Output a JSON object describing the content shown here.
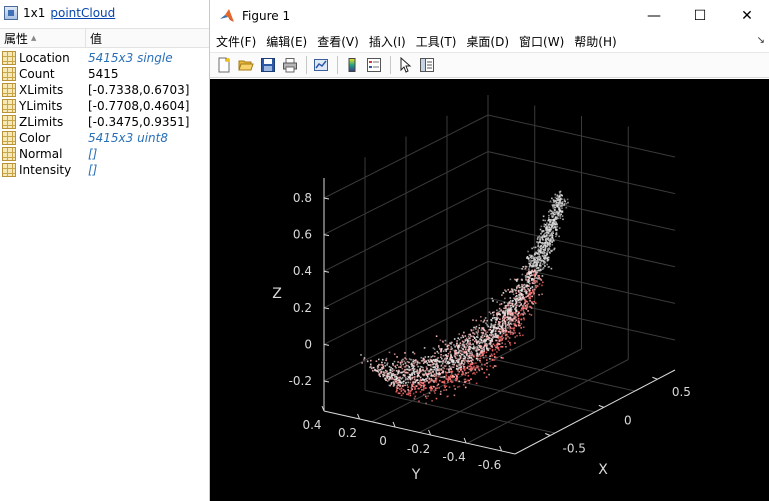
{
  "inspector": {
    "size": "1x1",
    "class_name": "pointCloud",
    "header": {
      "property": "属性",
      "value": "值"
    },
    "rows": [
      {
        "name": "Location",
        "value": "5415x3 single",
        "link": true
      },
      {
        "name": "Count",
        "value": "5415",
        "link": false
      },
      {
        "name": "XLimits",
        "value": "[-0.7338,0.6703]",
        "link": false
      },
      {
        "name": "YLimits",
        "value": "[-0.7708,0.4604]",
        "link": false
      },
      {
        "name": "ZLimits",
        "value": "[-0.3475,0.9351]",
        "link": false
      },
      {
        "name": "Color",
        "value": "5415x3 uint8",
        "link": true
      },
      {
        "name": "Normal",
        "value": "[]",
        "link": true
      },
      {
        "name": "Intensity",
        "value": "[]",
        "link": true
      }
    ]
  },
  "figure": {
    "title": "Figure 1",
    "window_buttons": {
      "minimize": "—",
      "maximize": "☐",
      "close": "✕"
    },
    "menu": [
      "文件(F)",
      "编辑(E)",
      "查看(V)",
      "插入(I)",
      "工具(T)",
      "桌面(D)",
      "窗口(W)",
      "帮助(H)"
    ],
    "menu_overflow": "↘",
    "toolbar": [
      "new-figure-icon",
      "open-file-icon",
      "save-icon",
      "print-icon",
      "link-plot-icon",
      "colorbar-icon",
      "legend-icon",
      "pointer-icon",
      "property-inspector-icon"
    ]
  },
  "chart_data": {
    "type": "scatter",
    "projection": "3d",
    "point_count": 5415,
    "zlabel": "Z",
    "ylabel": "Y",
    "xlabel": "X",
    "z_ticks": [
      "-0.2",
      "0",
      "0.2",
      "0.4",
      "0.6",
      "0.8"
    ],
    "y_ticks": [
      "0.4",
      "0.2",
      "0",
      "-0.2",
      "-0.4",
      "-0.6"
    ],
    "x_ticks": [
      "-0.5",
      "0",
      "0.5"
    ],
    "xlim": [
      -0.7338,
      0.6703
    ],
    "ylim": [
      -0.7708,
      0.4604
    ],
    "zlim": [
      -0.3475,
      0.9351
    ],
    "grid": true,
    "background": "#000000",
    "axis_color": "#d9d9d9",
    "point_colors": [
      "#ff6a6a",
      "#ffb3b3",
      "#e9e9e9",
      "#c8c8c8"
    ]
  }
}
